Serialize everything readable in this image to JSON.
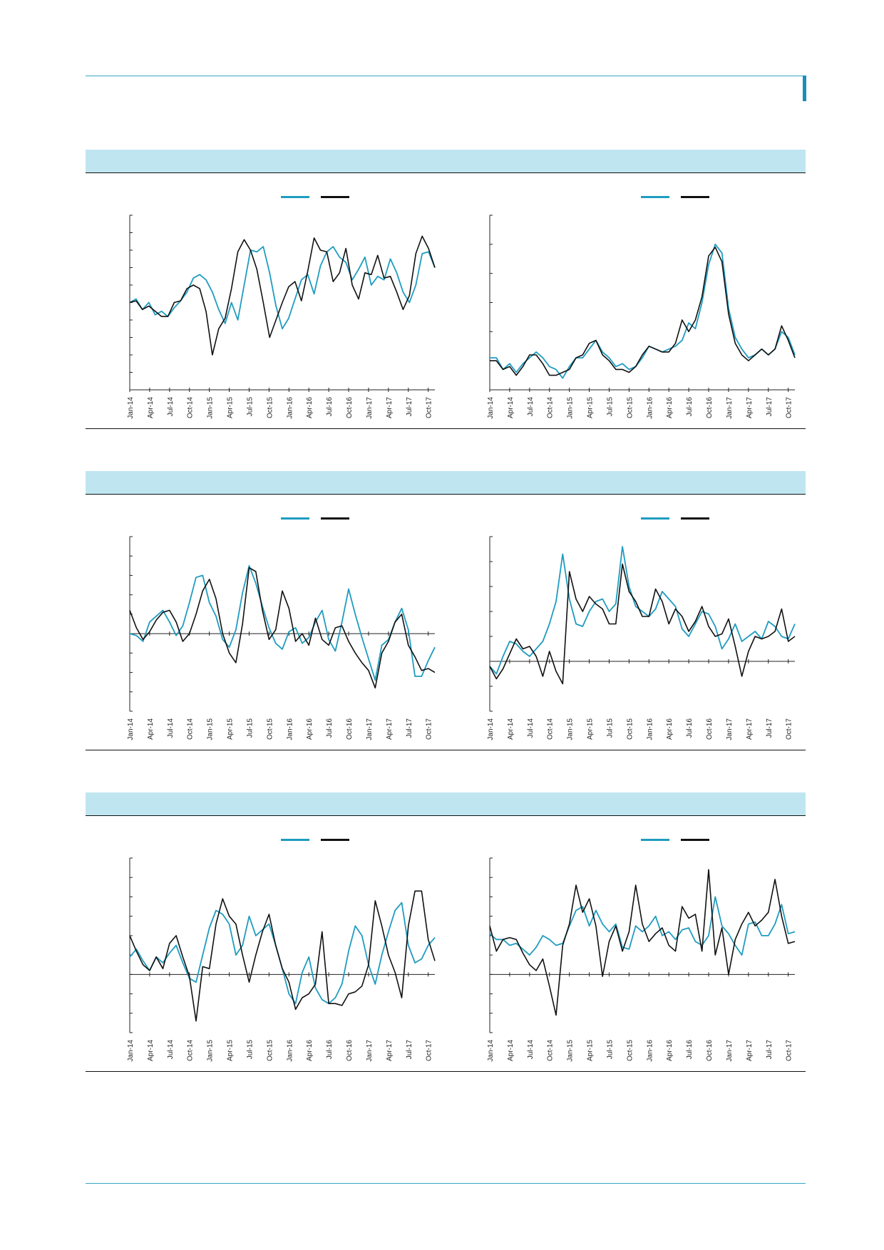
{
  "colors": {
    "series_a": "#1f9cc0",
    "series_b": "#111111",
    "header_bg": "#bfe6f0",
    "rule": "#3aa6c4"
  },
  "chart_data": [
    {
      "type": "line",
      "section": 1,
      "x_ticks": [
        "Jan-14",
        "Apr-14",
        "Jul-14",
        "Oct-14",
        "Jan-15",
        "Apr-15",
        "Jul-15",
        "Oct-15",
        "Jan-16",
        "Apr-16",
        "Jul-16",
        "Oct-16",
        "Jan-17",
        "Apr-17",
        "Jul-17",
        "Oct-17"
      ],
      "xlim": [
        0,
        46
      ],
      "ylim": [
        0,
        10
      ],
      "zero": null,
      "y_ticks": 11,
      "series": [
        {
          "values": [
            5.0,
            5.2,
            4.6,
            5.0,
            4.3,
            4.5,
            4.2,
            4.7,
            5.1,
            5.6,
            6.4,
            6.6,
            6.3,
            5.6,
            4.6,
            3.8,
            5.0,
            4.0,
            6.0,
            8.0,
            7.9,
            8.2,
            6.7,
            4.8,
            3.5,
            4.1,
            5.2,
            6.3,
            6.6,
            5.5,
            7.1,
            7.9,
            8.2,
            7.6,
            7.3,
            6.3,
            6.9,
            7.6,
            6.0,
            6.5,
            6.3,
            7.5,
            6.7,
            5.6,
            5.0,
            6.0,
            7.8,
            7.9,
            7.0
          ]
        },
        {
          "values": [
            5.0,
            5.1,
            4.6,
            4.8,
            4.5,
            4.2,
            4.2,
            5.0,
            5.1,
            5.8,
            6.0,
            5.8,
            4.5,
            2.0,
            3.5,
            4.1,
            5.8,
            7.9,
            8.6,
            8.0,
            6.9,
            5.0,
            3.0,
            4.0,
            5.0,
            5.9,
            6.2,
            5.1,
            6.8,
            8.7,
            8.0,
            7.9,
            6.2,
            6.7,
            8.1,
            6.0,
            5.2,
            6.7,
            6.6,
            7.7,
            6.4,
            6.5,
            5.6,
            4.6,
            5.4,
            7.8,
            8.8,
            8.1,
            7.0
          ]
        }
      ]
    },
    {
      "type": "line",
      "section": 1,
      "x_ticks": [
        "Jan-14",
        "Apr-14",
        "Jul-14",
        "Oct-14",
        "Jan-15",
        "Apr-15",
        "Jul-15",
        "Oct-15",
        "Jan-16",
        "Apr-16",
        "Jul-16",
        "Oct-16",
        "Jan-17",
        "Apr-17",
        "Jul-17",
        "Oct-17"
      ],
      "xlim": [
        0,
        46
      ],
      "ylim": [
        0,
        6
      ],
      "zero": null,
      "y_ticks": 7,
      "series": [
        {
          "values": [
            1.1,
            1.1,
            0.7,
            0.9,
            0.6,
            0.9,
            1.1,
            1.3,
            1.1,
            0.8,
            0.7,
            0.4,
            0.8,
            1.1,
            1.1,
            1.4,
            1.7,
            1.3,
            1.1,
            0.8,
            0.9,
            0.7,
            0.8,
            1.1,
            1.5,
            1.4,
            1.3,
            1.4,
            1.5,
            1.7,
            2.3,
            2.1,
            3.0,
            4.3,
            5.0,
            4.7,
            2.8,
            1.8,
            1.4,
            1.1,
            1.2,
            1.4,
            1.2,
            1.4,
            2.0,
            1.8,
            1.2
          ]
        },
        {
          "values": [
            1.0,
            1.0,
            0.7,
            0.8,
            0.5,
            0.8,
            1.2,
            1.2,
            0.9,
            0.5,
            0.5,
            0.6,
            0.7,
            1.1,
            1.2,
            1.6,
            1.7,
            1.2,
            1.0,
            0.7,
            0.7,
            0.6,
            0.8,
            1.2,
            1.5,
            1.4,
            1.3,
            1.3,
            1.6,
            2.4,
            2.0,
            2.4,
            3.2,
            4.6,
            4.9,
            4.4,
            2.6,
            1.6,
            1.2,
            1.0,
            1.2,
            1.4,
            1.2,
            1.4,
            2.2,
            1.7,
            1.1
          ]
        }
      ]
    },
    {
      "type": "line",
      "section": 2,
      "x_ticks": [
        "Jan-14",
        "Apr-14",
        "Jul-14",
        "Oct-14",
        "Jan-15",
        "Apr-15",
        "Jul-15",
        "Oct-15",
        "Jan-16",
        "Apr-16",
        "Jul-16",
        "Oct-16",
        "Jan-17",
        "Apr-17",
        "Jul-17",
        "Oct-17"
      ],
      "xlim": [
        0,
        46
      ],
      "ylim": [
        -4,
        5
      ],
      "zero": 0,
      "y_ticks": 10,
      "series": [
        {
          "values": [
            0.0,
            -0.1,
            -0.4,
            0.6,
            0.9,
            1.2,
            0.6,
            -0.1,
            0.4,
            1.6,
            2.9,
            3.0,
            1.6,
            0.9,
            -0.3,
            -0.7,
            0.2,
            2.1,
            3.5,
            2.6,
            1.4,
            0.3,
            -0.5,
            -0.8,
            0.1,
            0.3,
            -0.5,
            -0.2,
            0.6,
            1.2,
            -0.3,
            -0.9,
            0.6,
            2.3,
            1.0,
            -0.2,
            -1.3,
            -2.4,
            -0.6,
            -0.3,
            0.6,
            1.3,
            0.2,
            -2.2,
            -2.2,
            -1.4,
            -0.7
          ]
        },
        {
          "values": [
            1.2,
            0.3,
            -0.3,
            0.1,
            0.7,
            1.1,
            1.2,
            0.6,
            -0.4,
            0.0,
            1.0,
            2.2,
            2.8,
            1.8,
            0.0,
            -1.0,
            -1.5,
            0.5,
            3.4,
            3.2,
            1.2,
            -0.3,
            0.2,
            2.2,
            1.3,
            -0.4,
            0.0,
            -0.6,
            0.8,
            -0.3,
            -0.6,
            0.3,
            0.4,
            -0.4,
            -1.0,
            -1.5,
            -1.9,
            -2.8,
            -1.0,
            -0.4,
            0.6,
            1.0,
            -0.6,
            -1.2,
            -1.9,
            -1.8,
            -2.0
          ]
        }
      ]
    },
    {
      "type": "line",
      "section": 2,
      "x_ticks": [
        "Jan-14",
        "Apr-14",
        "Jul-14",
        "Oct-14",
        "Jan-15",
        "Apr-15",
        "Jul-15",
        "Oct-15",
        "Jan-16",
        "Apr-16",
        "Jul-16",
        "Oct-16",
        "Jan-17",
        "Apr-17",
        "Jul-17",
        "Oct-17"
      ],
      "xlim": [
        0,
        46
      ],
      "ylim": [
        -2,
        5
      ],
      "zero": 0,
      "y_ticks": 8,
      "series": [
        {
          "values": [
            -0.2,
            -0.5,
            0.2,
            0.8,
            0.7,
            0.4,
            0.2,
            0.5,
            0.8,
            1.5,
            2.4,
            4.3,
            2.5,
            1.5,
            1.4,
            2.0,
            2.4,
            2.5,
            2.0,
            2.3,
            4.6,
            3.0,
            2.2,
            2.0,
            1.8,
            2.1,
            2.8,
            2.5,
            2.2,
            1.3,
            1.0,
            1.5,
            2.0,
            1.9,
            1.4,
            0.5,
            0.9,
            1.5,
            0.8,
            1.0,
            1.2,
            0.9,
            1.6,
            1.4,
            1.0,
            0.9,
            1.5
          ]
        },
        {
          "values": [
            -0.2,
            -0.7,
            -0.3,
            0.3,
            0.9,
            0.5,
            0.6,
            0.2,
            -0.6,
            0.4,
            -0.4,
            -0.9,
            3.6,
            2.5,
            2.0,
            2.6,
            2.3,
            2.1,
            1.5,
            1.5,
            3.9,
            2.8,
            2.4,
            1.8,
            1.8,
            2.9,
            2.4,
            1.5,
            2.1,
            1.8,
            1.2,
            1.6,
            2.2,
            1.4,
            1.0,
            1.1,
            1.7,
            0.6,
            -0.6,
            0.4,
            1.0,
            0.9,
            1.0,
            1.2,
            2.1,
            0.8,
            1.0
          ]
        }
      ]
    },
    {
      "type": "line",
      "section": 3,
      "x_ticks": [
        "Jan-14",
        "Apr-14",
        "Jul-14",
        "Oct-14",
        "Jan-15",
        "Apr-15",
        "Jul-15",
        "Oct-15",
        "Jan-16",
        "Apr-16",
        "Jul-16",
        "Oct-16",
        "Jan-17",
        "Apr-17",
        "Jul-17",
        "Oct-17"
      ],
      "xlim": [
        0,
        46
      ],
      "ylim": [
        -3,
        6
      ],
      "zero": 0,
      "y_ticks": 10,
      "series": [
        {
          "values": [
            0.9,
            1.3,
            0.7,
            0.2,
            0.9,
            0.6,
            1.1,
            1.5,
            0.6,
            -0.2,
            -0.4,
            1.0,
            2.4,
            3.3,
            3.1,
            2.6,
            1.0,
            1.5,
            3.0,
            2.0,
            2.3,
            2.6,
            1.5,
            0.3,
            -1.0,
            -1.5,
            0.1,
            0.9,
            -0.7,
            -1.3,
            -1.5,
            -1.2,
            -0.5,
            1.2,
            2.5,
            2.0,
            0.5,
            -0.5,
            1.0,
            2.2,
            3.3,
            3.7,
            1.5,
            0.6,
            0.8,
            1.5,
            1.9
          ]
        },
        {
          "values": [
            2.0,
            1.2,
            0.5,
            0.2,
            0.9,
            0.3,
            1.6,
            2.0,
            0.9,
            -0.1,
            -2.4,
            0.4,
            0.3,
            2.6,
            3.9,
            3.0,
            2.6,
            1.0,
            -0.4,
            1.0,
            2.2,
            3.1,
            1.5,
            0.3,
            -0.4,
            -1.8,
            -1.2,
            -1.0,
            -0.5,
            2.2,
            -1.5,
            -1.5,
            -1.6,
            -1.0,
            -0.9,
            -0.6,
            0.5,
            3.8,
            2.5,
            1.0,
            0.1,
            -1.2,
            2.5,
            4.3,
            4.3,
            1.8,
            0.7
          ]
        }
      ]
    },
    {
      "type": "line",
      "section": 3,
      "x_ticks": [
        "Jan-14",
        "Apr-14",
        "Jul-14",
        "Oct-14",
        "Jan-15",
        "Apr-15",
        "Jul-15",
        "Oct-15",
        "Jan-16",
        "Apr-16",
        "Jul-16",
        "Oct-16",
        "Jan-17",
        "Apr-17",
        "Jul-17",
        "Oct-17"
      ],
      "xlim": [
        0,
        46
      ],
      "ylim": [
        -3,
        6
      ],
      "zero": 0,
      "y_ticks": 10,
      "series": [
        {
          "values": [
            2.1,
            1.8,
            1.8,
            1.5,
            1.6,
            1.3,
            1.0,
            1.4,
            2.0,
            1.8,
            1.5,
            1.6,
            2.5,
            3.3,
            3.5,
            2.5,
            3.3,
            2.6,
            2.2,
            2.6,
            1.4,
            1.3,
            2.5,
            2.2,
            2.5,
            3.0,
            2.0,
            2.2,
            1.8,
            2.3,
            2.4,
            1.7,
            1.5,
            2.0,
            4.0,
            2.5,
            2.1,
            1.5,
            1.0,
            2.6,
            2.7,
            2.0,
            2.0,
            2.6,
            3.6,
            2.1,
            2.2
          ]
        },
        {
          "values": [
            2.5,
            1.2,
            1.8,
            1.9,
            1.8,
            1.1,
            0.5,
            0.2,
            0.8,
            -0.6,
            -2.1,
            1.5,
            2.6,
            4.6,
            3.2,
            3.9,
            2.5,
            -0.1,
            1.7,
            2.5,
            1.2,
            2.2,
            4.6,
            2.6,
            1.7,
            2.1,
            2.4,
            1.5,
            1.2,
            3.5,
            2.9,
            3.1,
            1.2,
            5.4,
            1.0,
            2.4,
            0.0,
            1.8,
            2.6,
            3.2,
            2.5,
            2.8,
            3.2,
            4.9,
            3.0,
            1.6,
            1.7
          ]
        }
      ]
    }
  ]
}
